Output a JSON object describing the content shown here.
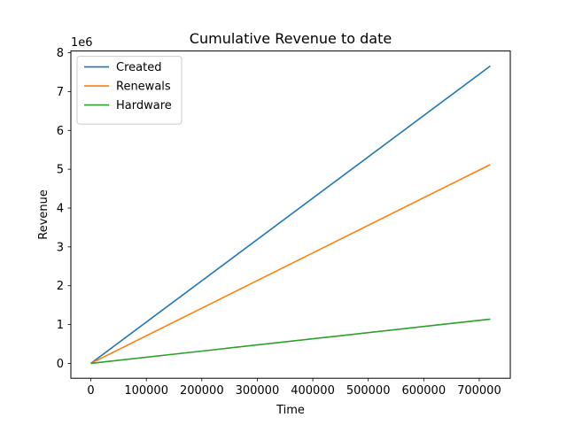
{
  "chart_data": {
    "type": "line",
    "title": "Cumulative Revenue to date",
    "xlabel": "Time",
    "ylabel": "Revenue",
    "y_offset_label": "1e6",
    "xlim": [
      -36000,
      756000
    ],
    "ylim": [
      -0.383,
      8.045
    ],
    "x_ticks": [
      0,
      100000,
      200000,
      300000,
      400000,
      500000,
      600000,
      700000
    ],
    "x_tick_labels": [
      "0",
      "100000",
      "200000",
      "300000",
      "400000",
      "500000",
      "600000",
      "700000"
    ],
    "y_ticks": [
      0,
      1,
      2,
      3,
      4,
      5,
      6,
      7,
      8
    ],
    "y_tick_labels": [
      "0",
      "1",
      "2",
      "3",
      "4",
      "5",
      "6",
      "7",
      "8"
    ],
    "grid": false,
    "legend_position": "upper-left",
    "series": [
      {
        "name": "Created",
        "color": "#1f77b4",
        "x": [
          0,
          720000
        ],
        "y": [
          0,
          7.66
        ]
      },
      {
        "name": "Renewals",
        "color": "#ff7f0e",
        "x": [
          0,
          720000
        ],
        "y": [
          0,
          5.12
        ]
      },
      {
        "name": "Hardware",
        "color": "#2ca02c",
        "x": [
          0,
          720000
        ],
        "y": [
          0,
          1.14
        ]
      }
    ]
  }
}
